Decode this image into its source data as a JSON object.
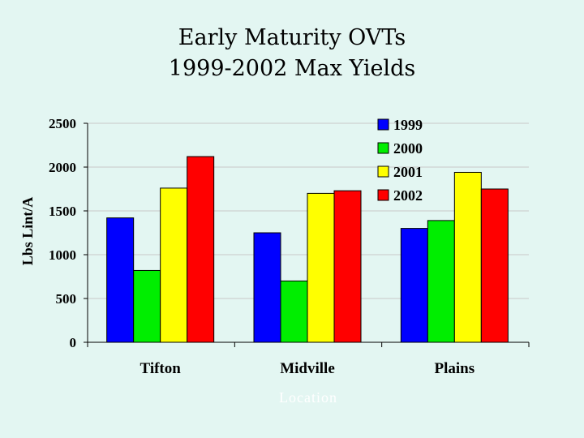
{
  "title_line1": "Early Maturity OVTs",
  "title_line2": "1999-2002 Max Yields",
  "chart_data": {
    "type": "bar",
    "title": "Early Maturity OVTs 1999-2002 Max Yields",
    "categories": [
      "Tifton",
      "Midville",
      "Plains"
    ],
    "series": [
      {
        "name": "1999",
        "color": "#0000ff",
        "values": [
          1420,
          1250,
          1300
        ]
      },
      {
        "name": "2000",
        "color": "#00ee00",
        "values": [
          820,
          700,
          1390
        ]
      },
      {
        "name": "2001",
        "color": "#ffff00",
        "values": [
          1760,
          1700,
          1940
        ]
      },
      {
        "name": "2002",
        "color": "#ff0000",
        "values": [
          2120,
          1730,
          1750
        ]
      }
    ],
    "ylabel": "Lbs Lint/A",
    "xlabel": "Location",
    "ylim": [
      0,
      2500
    ],
    "yticks": [
      "0",
      "500",
      "1000",
      "1500",
      "2000",
      "2500"
    ],
    "grid": true,
    "legend_placement": "top-right"
  }
}
